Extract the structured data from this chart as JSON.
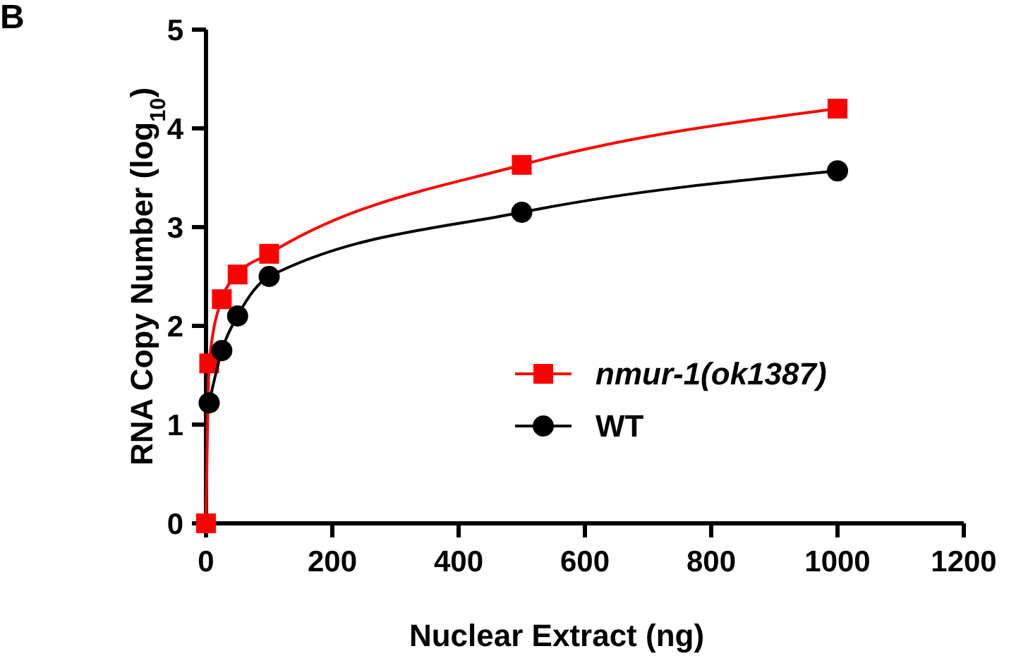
{
  "chart_data": {
    "type": "line",
    "title": "B",
    "xlabel": "Nuclear Extract (ng)",
    "ylabel": "RNA Copy Number (log$_{10}$)",
    "xlim": [
      0,
      1200
    ],
    "xticks": [
      0,
      200,
      400,
      600,
      800,
      1000,
      1200
    ],
    "ylim": [
      0,
      5
    ],
    "yticks": [
      0,
      1,
      2,
      3,
      4,
      5
    ],
    "grid": false,
    "legend": "right",
    "line_style": "solid",
    "series": [
      {
        "name": "nmur-1(ok1387)",
        "color": "#ff0000",
        "marker": "square",
        "x": [
          0,
          5,
          25,
          50,
          100,
          500,
          1000
        ],
        "values": [
          0,
          1.62,
          2.27,
          2.52,
          2.73,
          3.63,
          4.2
        ]
      },
      {
        "name": "WT",
        "color": "#000000",
        "marker": "circle",
        "x": [
          5,
          25,
          50,
          100,
          500,
          1000
        ],
        "values": [
          1.22,
          1.75,
          2.1,
          2.5,
          3.15,
          3.57
        ]
      }
    ]
  }
}
